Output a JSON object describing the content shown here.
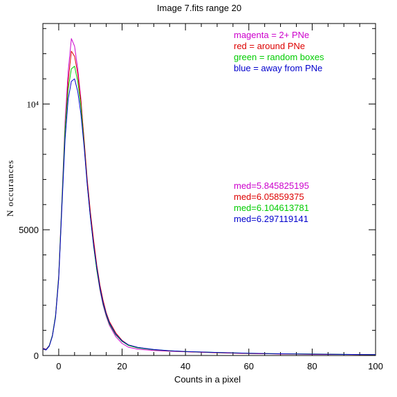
{
  "chart_data": {
    "type": "line",
    "title": "Image 7.fits   range 20",
    "xlabel": "Counts in a pixel",
    "ylabel": "N occurances",
    "xlim": [
      -5,
      100
    ],
    "ylim": [
      0,
      13200
    ],
    "x_ticks": [
      0,
      20,
      40,
      60,
      80,
      100
    ],
    "x_tick_labels": [
      "0",
      "20",
      "40",
      "60",
      "80",
      "100"
    ],
    "y_ticks": [
      0,
      5000,
      10000
    ],
    "y_tick_labels": [
      "0",
      "5000",
      "10⁴"
    ],
    "grid": false,
    "series": [
      {
        "color": "#cc00cc",
        "x": [
          -5,
          -4,
          -3,
          -2,
          -1,
          0,
          1,
          2,
          3,
          4,
          5,
          6,
          7,
          8,
          9,
          10,
          11,
          12,
          13,
          14,
          15,
          16,
          18,
          20,
          22,
          25,
          30,
          35,
          40,
          50,
          60,
          70,
          80,
          90,
          100
        ],
        "y": [
          300,
          250,
          400,
          800,
          1600,
          3200,
          6200,
          9300,
          11300,
          12600,
          12300,
          11400,
          10200,
          8500,
          6900,
          5600,
          4400,
          3400,
          2600,
          2000,
          1550,
          1200,
          750,
          480,
          330,
          250,
          200,
          170,
          150,
          110,
          80,
          60,
          50,
          40,
          35
        ]
      },
      {
        "color": "#dd0000",
        "x": [
          -5,
          -4,
          -3,
          -2,
          -1,
          0,
          1,
          2,
          3,
          4,
          5,
          6,
          7,
          8,
          9,
          10,
          11,
          12,
          13,
          14,
          15,
          16,
          18,
          20,
          22,
          25,
          30,
          35,
          40,
          50,
          60,
          70,
          80,
          90,
          100
        ],
        "y": [
          250,
          220,
          380,
          780,
          1550,
          3100,
          6000,
          9000,
          10900,
          12100,
          11900,
          11200,
          10100,
          8600,
          7000,
          5700,
          4600,
          3600,
          2800,
          2200,
          1700,
          1350,
          900,
          600,
          420,
          320,
          230,
          180,
          150,
          110,
          80,
          60,
          50,
          40,
          30
        ]
      },
      {
        "color": "#00cc00",
        "x": [
          -5,
          -4,
          -3,
          -2,
          -1,
          0,
          1,
          2,
          3,
          4,
          5,
          6,
          7,
          8,
          9,
          10,
          11,
          12,
          13,
          14,
          15,
          16,
          18,
          20,
          22,
          25,
          30,
          35,
          40,
          50,
          60,
          70,
          80,
          90,
          100
        ],
        "y": [
          280,
          230,
          390,
          790,
          1580,
          3150,
          6100,
          9000,
          10600,
          11400,
          11500,
          10900,
          9900,
          8400,
          6800,
          5500,
          4350,
          3400,
          2650,
          2050,
          1600,
          1250,
          820,
          560,
          400,
          300,
          230,
          190,
          160,
          120,
          90,
          70,
          60,
          45,
          35
        ]
      },
      {
        "color": "#0000cc",
        "x": [
          -5,
          -4,
          -3,
          -2,
          -1,
          0,
          1,
          2,
          3,
          4,
          5,
          6,
          7,
          8,
          9,
          10,
          11,
          12,
          13,
          14,
          15,
          16,
          18,
          20,
          22,
          25,
          30,
          35,
          40,
          50,
          60,
          70,
          80,
          90,
          100
        ],
        "y": [
          260,
          220,
          370,
          760,
          1520,
          3050,
          5900,
          8600,
          10200,
          10900,
          11000,
          10500,
          9600,
          8300,
          6800,
          5500,
          4400,
          3500,
          2700,
          2100,
          1650,
          1300,
          850,
          580,
          420,
          320,
          240,
          190,
          160,
          120,
          90,
          70,
          55,
          45,
          35
        ]
      }
    ],
    "legend": [
      {
        "text": "magenta = 2+ PNe",
        "color": "#cc00cc"
      },
      {
        "text": "red = around PNe",
        "color": "#dd0000"
      },
      {
        "text": "green = random boxes",
        "color": "#00cc00"
      },
      {
        "text": "blue = away from PNe",
        "color": "#0000cc"
      }
    ],
    "medians": [
      {
        "text": "med=5.845825195",
        "color": "#cc00cc"
      },
      {
        "text": "med=6.05859375",
        "color": "#dd0000"
      },
      {
        "text": "med=6.104613781",
        "color": "#00cc00"
      },
      {
        "text": "med=6.297119141",
        "color": "#0000cc"
      }
    ]
  }
}
